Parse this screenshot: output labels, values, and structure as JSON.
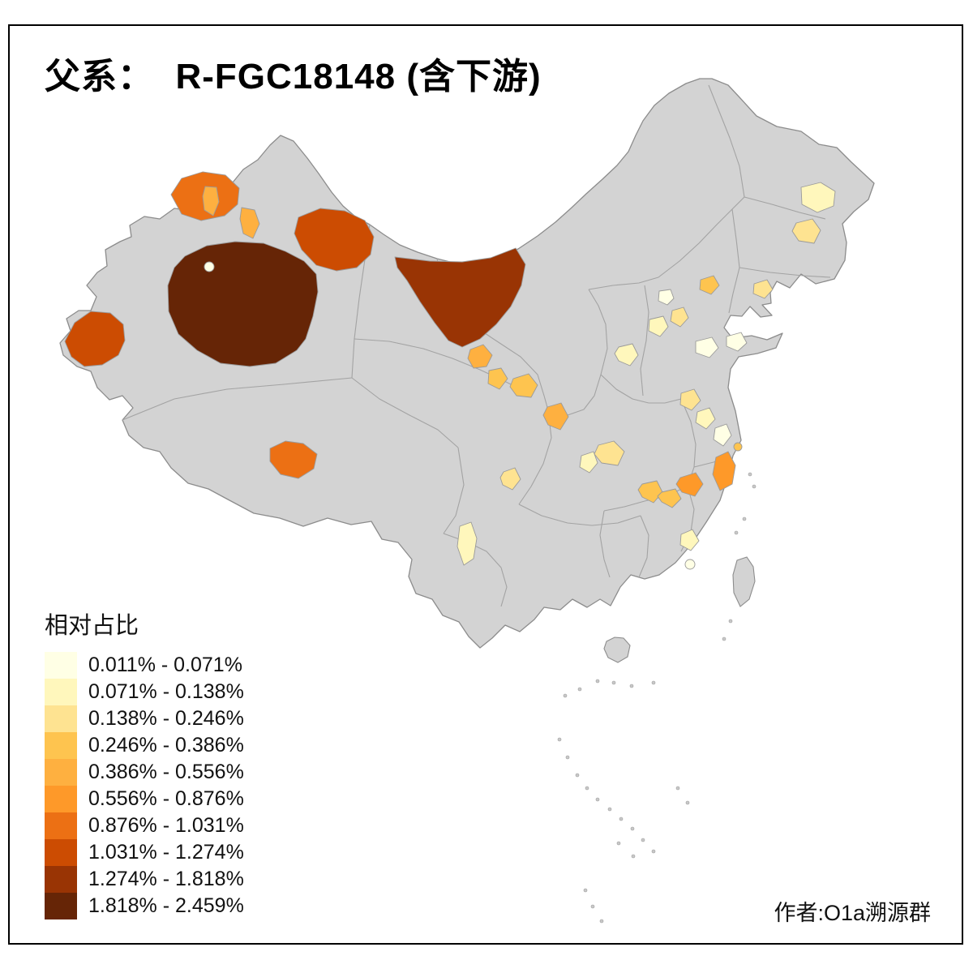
{
  "title": "父系：  R-FGC18148 (含下游)",
  "attribution": "作者:O1a溯源群",
  "legend": {
    "title": "相对占比",
    "classes": [
      {
        "label": "0.011% - 0.071%",
        "color": "#FFFFE5"
      },
      {
        "label": "0.071% - 0.138%",
        "color": "#FFF7BC"
      },
      {
        "label": "0.138% - 0.246%",
        "color": "#FEE391"
      },
      {
        "label": "0.246% - 0.386%",
        "color": "#FEC44F"
      },
      {
        "label": "0.386% - 0.556%",
        "color": "#FEB040"
      },
      {
        "label": "0.556% - 0.876%",
        "color": "#FE9929"
      },
      {
        "label": "0.876% - 1.031%",
        "color": "#EC7014"
      },
      {
        "label": "1.031% - 1.274%",
        "color": "#CC4C02"
      },
      {
        "label": "1.274% - 1.818%",
        "color": "#993404"
      },
      {
        "label": "1.818% - 2.459%",
        "color": "#662506"
      }
    ]
  },
  "map": {
    "base_color": "#d3d3d3",
    "national_border_color": "#8c8c8c",
    "province_border_color": "#a3a3a3",
    "region_border_color": "#9a9a9a",
    "regions": [
      {
        "id": "xinjiang-bayingolin",
        "class": 10
      },
      {
        "id": "bayingolin-enclave",
        "class": 1
      },
      {
        "id": "neimenggu-alxa",
        "class": 9
      },
      {
        "id": "xinjiang-hami",
        "class": 8
      },
      {
        "id": "xinjiang-kashgar",
        "class": 8
      },
      {
        "id": "xinjiang-tacheng",
        "class": 7
      },
      {
        "id": "xinjiang-tacheng-inner",
        "class": 5
      },
      {
        "id": "xinjiang-bortala",
        "class": 5
      },
      {
        "id": "tibet-shigatse",
        "class": 7
      },
      {
        "id": "gansu-west",
        "class": 5
      },
      {
        "id": "gansu-mid",
        "class": 4
      },
      {
        "id": "gansu-lanzhou",
        "class": 4
      },
      {
        "id": "ningxia-south",
        "class": 5
      },
      {
        "id": "shanxi-south",
        "class": 2
      },
      {
        "id": "sichuan-north",
        "class": 3
      },
      {
        "id": "sichuan-west",
        "class": 2
      },
      {
        "id": "sichuan-aba",
        "class": 3
      },
      {
        "id": "yunnan-west",
        "class": 2
      },
      {
        "id": "chongqing",
        "class": 4
      },
      {
        "id": "hubei-south",
        "class": 6
      },
      {
        "id": "hunan-north",
        "class": 4
      },
      {
        "id": "zhejiang-coast",
        "class": 6
      },
      {
        "id": "shanghai-dot",
        "class": 4
      },
      {
        "id": "fujian-west",
        "class": 2
      },
      {
        "id": "guangdong-mid",
        "class": 1
      },
      {
        "id": "henan-west",
        "class": 3
      },
      {
        "id": "henan-east",
        "class": 2
      },
      {
        "id": "anhui-mid",
        "class": 1
      },
      {
        "id": "shandong-west",
        "class": 1
      },
      {
        "id": "shandong-east",
        "class": 1
      },
      {
        "id": "beijing",
        "class": 1
      },
      {
        "id": "hebei-north",
        "class": 2
      },
      {
        "id": "tianjin",
        "class": 3
      },
      {
        "id": "liaoning-west",
        "class": 4
      },
      {
        "id": "liaoning-east",
        "class": 3
      },
      {
        "id": "heilongjiang-north",
        "class": 2
      },
      {
        "id": "heilongjiang-east",
        "class": 3
      }
    ]
  }
}
